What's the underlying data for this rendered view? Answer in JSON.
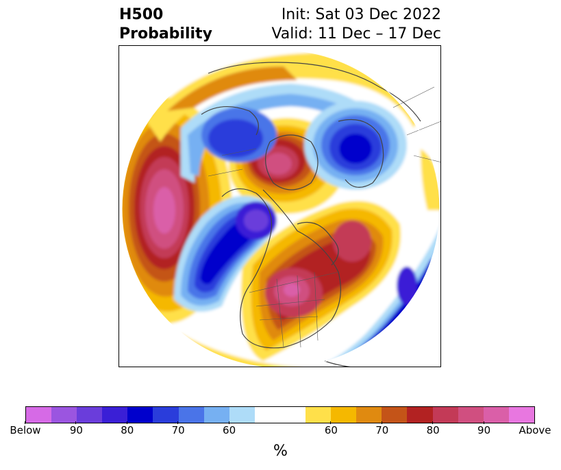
{
  "title": {
    "left_line1": "H500",
    "left_line2": "Probability",
    "right_line1": "Init: Sat 03 Dec 2022",
    "right_line2": "Valid: 11 Dec – 17 Dec"
  },
  "colorbar": {
    "unit": "%",
    "colors": [
      "#d66ae6",
      "#9b55e0",
      "#6a3ddb",
      "#3a1fd6",
      "#0000cc",
      "#2a3ddb",
      "#4a74e8",
      "#76b0f2",
      "#aedcf8",
      "#ffffff",
      "#ffe04a",
      "#f5b800",
      "#e08a10",
      "#c45418",
      "#b22222",
      "#c33a57",
      "#d04f80",
      "#da5fa8",
      "#e877e0"
    ],
    "tick_labels": [
      "Below",
      "90",
      "80",
      "70",
      "60",
      "60",
      "70",
      "80",
      "90",
      "Above"
    ]
  },
  "map": {
    "projection": "north-polar-stereographic",
    "features": [
      "coastlines",
      "country-borders",
      "us-state-borders"
    ],
    "anomalies": [
      {
        "region": "Northeast Pacific / Gulf of Alaska",
        "sign": "above",
        "peak": "90+"
      },
      {
        "region": "Western Canada / Alaska",
        "sign": "below",
        "peak": "80-90"
      },
      {
        "region": "Eastern Canada / Northeast US",
        "sign": "above",
        "peak": "80-90"
      },
      {
        "region": "North Atlantic",
        "sign": "above",
        "peak": "80"
      },
      {
        "region": "Western Atlantic",
        "sign": "below",
        "peak": "80-90"
      },
      {
        "region": "Greenland",
        "sign": "above",
        "peak": "90"
      },
      {
        "region": "Northern Europe / Scandinavia",
        "sign": "below",
        "peak": "80"
      },
      {
        "region": "Arctic / Siberia",
        "sign": "below",
        "peak": "70"
      }
    ]
  }
}
